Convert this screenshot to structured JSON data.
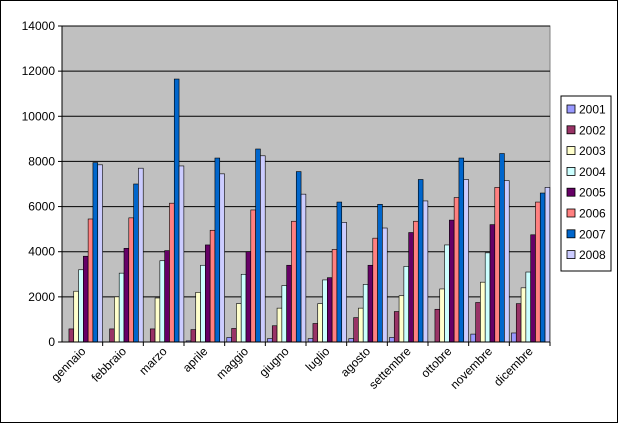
{
  "chart_data": {
    "type": "bar",
    "categories": [
      "gennaio",
      "febbraio",
      "marzo",
      "aprile",
      "maggio",
      "giugno",
      "luglio",
      "agosto",
      "settembre",
      "ottobre",
      "novembre",
      "dicembre"
    ],
    "series": [
      {
        "name": "2001",
        "color": "#9999ff",
        "values": [
          0,
          0,
          0,
          50,
          200,
          150,
          150,
          150,
          200,
          0,
          350,
          400
        ]
      },
      {
        "name": "2002",
        "color": "#993366",
        "values": [
          580,
          580,
          580,
          550,
          600,
          720,
          820,
          1080,
          1350,
          1450,
          1750,
          1700
        ]
      },
      {
        "name": "2003",
        "color": "#ffffcc",
        "values": [
          2250,
          2000,
          1950,
          2200,
          1700,
          1500,
          1700,
          1500,
          2050,
          2350,
          2650,
          2400
        ]
      },
      {
        "name": "2004",
        "color": "#ccffff",
        "values": [
          3200,
          3050,
          3600,
          3400,
          3000,
          2500,
          2750,
          2550,
          3350,
          4300,
          3950,
          3100
        ]
      },
      {
        "name": "2005",
        "color": "#660066",
        "values": [
          3800,
          4150,
          4050,
          4300,
          4000,
          3400,
          2850,
          3400,
          4850,
          5400,
          5200,
          4750
        ]
      },
      {
        "name": "2006",
        "color": "#ff8080",
        "values": [
          5450,
          5500,
          6150,
          4950,
          5850,
          5350,
          4100,
          4600,
          5350,
          6400,
          6850,
          6200
        ]
      },
      {
        "name": "2007",
        "color": "#0066cc",
        "values": [
          7950,
          7000,
          11650,
          8150,
          8550,
          7550,
          6200,
          6100,
          7200,
          8150,
          8350,
          6600
        ]
      },
      {
        "name": "2008",
        "color": "#ccccff",
        "values": [
          7850,
          7700,
          7800,
          7450,
          8250,
          6550,
          5300,
          5050,
          6250,
          7200,
          7150,
          6850
        ]
      }
    ],
    "ylim": [
      0,
      14000
    ],
    "yticks": [
      "0",
      "2000",
      "4000",
      "6000",
      "8000",
      "10000",
      "12000",
      "14000"
    ],
    "grid": true,
    "legend_position": "right",
    "plot_background": "#c0c0c0"
  }
}
